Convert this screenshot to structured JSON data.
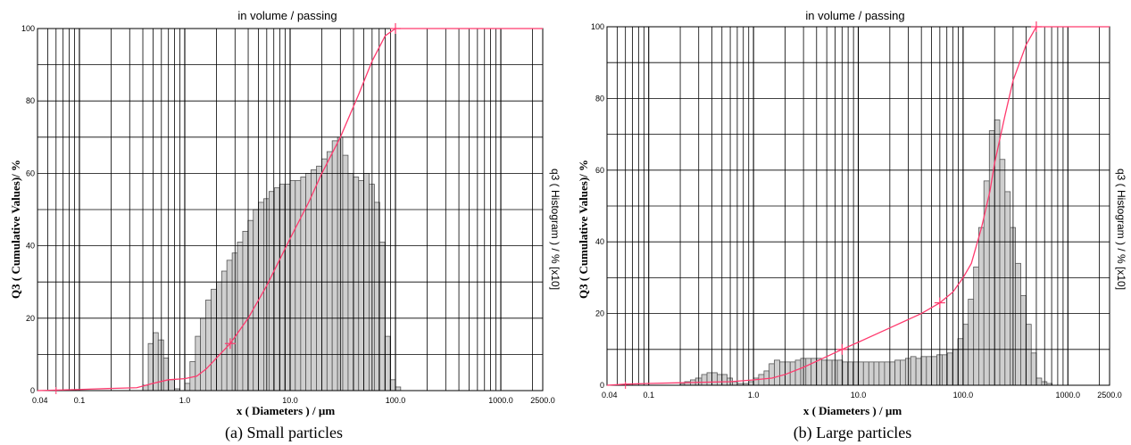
{
  "chart_data": [
    {
      "type": "bar",
      "title": "in volume / passing",
      "xlabel": "x ( Diameters ) / µm",
      "ylabel": "Q3 ( Cumulative Values)/ %",
      "ylabel_right": "q3 ( Histogram ) / % [x10]",
      "caption": "(a)  Small particles",
      "x_scale": "log",
      "xlim": [
        0.04,
        2500.0
      ],
      "ylim": [
        0,
        100
      ],
      "grid": true,
      "x_tick_labels": [
        "0.04",
        "0.1",
        "1.0",
        "10.0",
        "100.0",
        "1000.0",
        "2500.0"
      ],
      "y_tick_labels": [
        "0",
        "20",
        "40",
        "60",
        "80",
        "100"
      ],
      "x_ticks": [
        0.04,
        0.1,
        1.0,
        10.0,
        100.0,
        1000.0,
        2500.0
      ],
      "y_ticks": [
        0,
        20,
        40,
        60,
        80,
        100
      ],
      "histogram": {
        "x_bin_edges": [
          0.4,
          0.45,
          0.5,
          0.56,
          0.63,
          0.7,
          0.8,
          0.9,
          1.0,
          1.12,
          1.26,
          1.41,
          1.58,
          1.78,
          2.0,
          2.24,
          2.51,
          2.82,
          3.16,
          3.55,
          3.98,
          4.47,
          5.01,
          5.62,
          6.31,
          7.08,
          7.94,
          8.91,
          10.0,
          11.2,
          12.6,
          14.1,
          15.8,
          17.8,
          20.0,
          22.4,
          25.1,
          28.2,
          31.6,
          35.5,
          39.8,
          44.7,
          50.1,
          56.2,
          63.1,
          70.8,
          79.4,
          89.1,
          100.0,
          112.0
        ],
        "values": [
          1.5,
          13,
          16,
          14,
          9,
          3,
          0.5,
          0,
          2,
          8,
          15,
          20,
          25,
          28,
          30,
          33,
          36,
          38,
          41,
          44,
          47,
          50,
          52,
          53,
          55,
          56,
          57,
          57,
          58,
          58,
          59,
          60,
          61,
          62,
          64,
          66,
          69,
          70,
          65,
          60,
          59,
          58,
          60,
          57,
          52,
          41,
          15,
          3,
          1
        ]
      },
      "series": [
        {
          "name": "Q3",
          "x": [
            0.04,
            0.1,
            0.2,
            0.35,
            0.5,
            0.7,
            1.0,
            1.3,
            1.6,
            2.0,
            2.7,
            4.0,
            6.0,
            10.0,
            15.0,
            20.0,
            30.0,
            45.0,
            60.0,
            80.0,
            100.0,
            150.0,
            1000.0,
            2500.0
          ],
          "y": [
            0,
            0.3,
            0.6,
            0.8,
            2.0,
            3.0,
            3.3,
            4.0,
            6.0,
            9.0,
            13.0,
            20.0,
            29.0,
            42.0,
            52.0,
            60.0,
            70.0,
            82.0,
            91.0,
            98.0,
            100.0,
            100.0,
            100.0,
            100.0
          ]
        }
      ],
      "markers_x": [
        2.7,
        100.0
      ],
      "colors": {
        "curve": "#ff3a6e",
        "bar_fill": "#cfcfcf",
        "bar_edge": "#555555",
        "grid": "#000000"
      }
    },
    {
      "type": "bar",
      "title": "in volume / passing",
      "xlabel": "x ( Diameters ) / µm",
      "ylabel": "Q3 ( Cumulative Values)/ %",
      "ylabel_right": "q3 ( Histogram ) / % [x10]",
      "caption": "(b)  Large particles",
      "x_scale": "log",
      "xlim": [
        0.04,
        2500.0
      ],
      "ylim": [
        0,
        100
      ],
      "grid": true,
      "x_tick_labels": [
        "0.04",
        "0.1",
        "1.0",
        "10.0",
        "100.0",
        "1000.0",
        "2500.0"
      ],
      "y_tick_labels": [
        "0",
        "20",
        "40",
        "60",
        "80",
        "100"
      ],
      "x_ticks": [
        0.04,
        0.1,
        1.0,
        10.0,
        100.0,
        1000.0,
        2500.0
      ],
      "y_ticks": [
        0,
        20,
        40,
        60,
        80,
        100
      ],
      "histogram": {
        "x_bin_edges": [
          0.2,
          0.22,
          0.25,
          0.28,
          0.32,
          0.36,
          0.4,
          0.45,
          0.5,
          0.56,
          0.63,
          0.7,
          0.8,
          0.9,
          1.0,
          1.12,
          1.26,
          1.41,
          1.58,
          1.78,
          2.0,
          2.24,
          2.51,
          2.82,
          3.16,
          3.55,
          3.98,
          4.47,
          5.01,
          5.62,
          6.31,
          7.08,
          7.94,
          8.91,
          10.0,
          11.2,
          12.6,
          14.1,
          15.8,
          17.8,
          20.0,
          22.4,
          25.1,
          28.2,
          31.6,
          35.5,
          39.8,
          44.7,
          50.1,
          56.2,
          63.1,
          70.8,
          79.4,
          89.1,
          100.0,
          112.0,
          126.0,
          141.0,
          158.0,
          178.0,
          200.0,
          224.0,
          251.0,
          282.0,
          316.0,
          355.0,
          398.0,
          447.0,
          501.0,
          562.0,
          631.0,
          708.0
        ],
        "values": [
          0.5,
          1,
          1.5,
          2,
          3,
          3.5,
          3.5,
          3,
          3,
          2,
          1,
          0.5,
          0.5,
          1,
          2,
          3,
          4,
          6,
          7,
          6.5,
          6.5,
          6.5,
          7,
          7.5,
          7.5,
          7.5,
          7.5,
          7,
          7,
          7,
          7,
          6.5,
          6.5,
          6.5,
          6.5,
          6.5,
          6.5,
          6.5,
          6.5,
          6.5,
          6.5,
          7,
          7,
          7.5,
          8,
          7.5,
          8,
          8,
          8,
          8.5,
          8.5,
          9,
          10,
          13,
          17,
          24,
          33,
          44,
          57,
          71,
          74,
          63,
          54,
          44,
          34,
          25,
          17,
          9,
          2,
          1,
          0.5
        ]
      },
      "series": [
        {
          "name": "Q3",
          "x": [
            0.04,
            0.06,
            0.1,
            0.3,
            0.6,
            1.0,
            1.5,
            2.0,
            3.0,
            5.0,
            7.0,
            10.0,
            20.0,
            40.0,
            60.0,
            80.0,
            100.0,
            120.0,
            150.0,
            180.0,
            200.0,
            250.0,
            300.0,
            400.0,
            500.0,
            700.0,
            1000.0,
            2500.0
          ],
          "y": [
            0,
            0.3,
            0.5,
            0.8,
            1.0,
            1.5,
            2.0,
            3.0,
            5.0,
            8.0,
            10.0,
            12.0,
            16.0,
            20.0,
            23.0,
            26.0,
            30.0,
            34.0,
            44.0,
            54.0,
            62.0,
            75.0,
            85.0,
            95.0,
            100.0,
            100.0,
            100.0,
            100.0
          ]
        }
      ],
      "markers_x": [
        7.0,
        60.0,
        500.0
      ],
      "colors": {
        "curve": "#ff3a6e",
        "bar_fill": "#cfcfcf",
        "bar_edge": "#555555",
        "grid": "#000000"
      }
    }
  ]
}
